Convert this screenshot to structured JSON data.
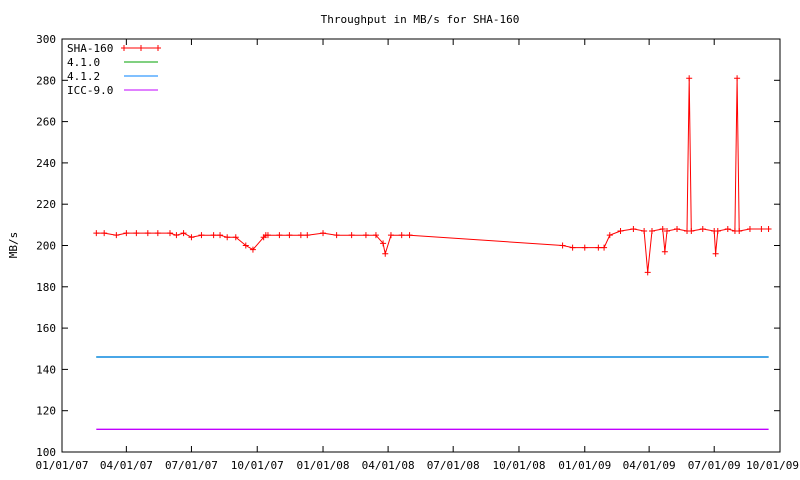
{
  "chart_data": {
    "type": "line",
    "title": "Throughput in MB/s for SHA-160",
    "xlabel": "",
    "ylabel": "MB/s",
    "xlim": [
      "2007-01-01",
      "2009-10-01"
    ],
    "ylim": [
      100,
      300
    ],
    "x_ticks": [
      "01/01/07",
      "04/01/07",
      "07/01/07",
      "10/01/07",
      "01/01/08",
      "04/01/08",
      "07/01/08",
      "10/01/08",
      "01/01/09",
      "04/01/09",
      "07/01/09",
      "10/01/09"
    ],
    "y_ticks": [
      100,
      120,
      140,
      160,
      180,
      200,
      220,
      240,
      260,
      280,
      300
    ],
    "grid": false,
    "legend_position": "top-left",
    "series": [
      {
        "name": "SHA-160",
        "color": "#ff0000",
        "marker": "plus",
        "x": [
          "2007-02-18",
          "2007-03-01",
          "2007-03-18",
          "2007-04-01",
          "2007-04-15",
          "2007-05-01",
          "2007-05-15",
          "2007-06-01",
          "2007-06-10",
          "2007-06-20",
          "2007-07-01",
          "2007-07-15",
          "2007-08-01",
          "2007-08-10",
          "2007-08-20",
          "2007-09-01",
          "2007-09-15",
          "2007-09-25",
          "2007-10-10",
          "2007-10-13",
          "2007-10-16",
          "2007-11-01",
          "2007-11-15",
          "2007-12-01",
          "2007-12-10",
          "2008-01-01",
          "2008-01-20",
          "2008-02-10",
          "2008-03-01",
          "2008-03-15",
          "2008-03-25",
          "2008-03-28",
          "2008-04-05",
          "2008-04-20",
          "2008-05-01",
          "2008-12-01",
          "2008-12-15",
          "2009-01-01",
          "2009-01-20",
          "2009-01-28",
          "2009-02-05",
          "2009-02-20",
          "2009-03-10",
          "2009-03-25",
          "2009-03-30",
          "2009-04-05",
          "2009-04-20",
          "2009-04-23",
          "2009-04-26",
          "2009-05-10",
          "2009-05-24",
          "2009-05-27",
          "2009-05-30",
          "2009-06-15",
          "2009-07-01",
          "2009-07-03",
          "2009-07-06",
          "2009-07-20",
          "2009-07-30",
          "2009-08-02",
          "2009-08-05",
          "2009-08-20",
          "2009-09-05",
          "2009-09-15"
        ],
        "y": [
          206,
          206,
          205,
          206,
          206,
          206,
          206,
          206,
          205,
          206,
          204,
          205,
          205,
          205,
          204,
          204,
          200,
          198,
          204,
          205,
          205,
          205,
          205,
          205,
          205,
          206,
          205,
          205,
          205,
          205,
          201,
          196,
          205,
          205,
          205,
          200,
          199,
          199,
          199,
          199,
          205,
          207,
          208,
          207,
          187,
          207,
          208,
          197,
          207,
          208,
          207,
          281,
          207,
          208,
          207,
          196,
          207,
          208,
          207,
          281,
          207,
          208,
          208,
          208
        ]
      },
      {
        "name": "4.1.0",
        "color": "#00a000",
        "marker": "",
        "x": [
          "2007-02-18",
          "2009-09-15"
        ],
        "y": [
          146,
          146
        ]
      },
      {
        "name": "4.1.2",
        "color": "#0080ff",
        "marker": "",
        "x": [
          "2007-02-18",
          "2009-09-15"
        ],
        "y": [
          146,
          146
        ]
      },
      {
        "name": "ICC-9.0",
        "color": "#c000ff",
        "marker": "",
        "x": [
          "2007-02-18",
          "2009-09-15"
        ],
        "y": [
          111,
          111
        ]
      }
    ]
  }
}
